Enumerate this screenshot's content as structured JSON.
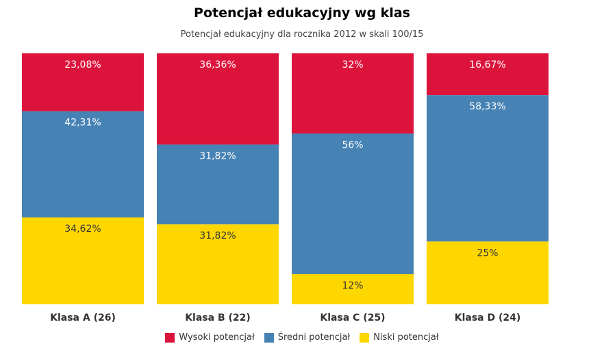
{
  "chart_data": {
    "type": "bar",
    "stacked": true,
    "normalized_percent": true,
    "title": "Potencjał edukacyjny wg klas",
    "subtitle": "Potencjał edukacyjny dla rocznika 2012 w skali 100/15",
    "categories": [
      "Klasa A (26)",
      "Klasa B (22)",
      "Klasa C (25)",
      "Klasa D (24)"
    ],
    "series": [
      {
        "name": "Wysoki potencjał",
        "color": "#dc143c",
        "values": [
          23.08,
          36.36,
          32,
          16.67
        ],
        "labels": [
          "23,08%",
          "36,36%",
          "32%",
          "16,67%"
        ]
      },
      {
        "name": "Średni potencjał",
        "color": "#4682b4",
        "values": [
          42.31,
          31.82,
          56,
          58.33
        ],
        "labels": [
          "42,31%",
          "31,82%",
          "56%",
          "58,33%"
        ]
      },
      {
        "name": "Niski potencjał",
        "color": "#ffd700",
        "values": [
          34.62,
          31.82,
          12,
          25
        ],
        "labels": [
          "34,62%",
          "31,82%",
          "12%",
          "25%"
        ]
      }
    ],
    "ylim": [
      0,
      100
    ],
    "legend_position": "bottom",
    "grid": false
  }
}
